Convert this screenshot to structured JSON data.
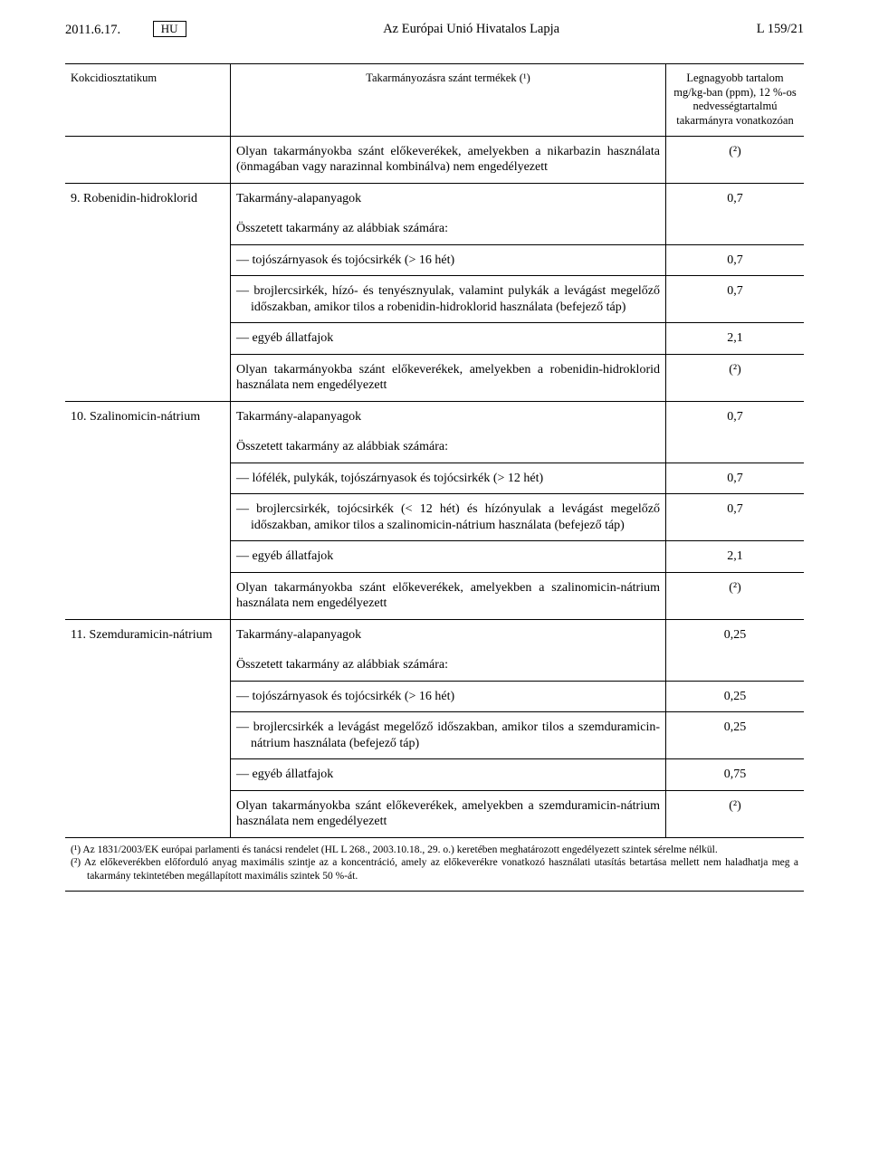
{
  "header": {
    "date": "2011.6.17.",
    "lang_box": "HU",
    "title": "Az Európai Unió Hivatalos Lapja",
    "page_ref": "L 159/21"
  },
  "table_header": {
    "col1": "Kokcidiosztatikum",
    "col2": "Takarmányozásra szánt termékek (¹)",
    "col3": "Legnagyobb tartalom mg/kg-ban (ppm), 12 %-os nedvességtartalmú takarmányra vonatkozóan"
  },
  "rows": {
    "r1": {
      "text": "Olyan takarmányokba szánt előkeverékek, amelyekben a nikarbazin használata (önmagában vagy narazinnal kombinálva) nem engedélyezett",
      "val": "(²)"
    },
    "s9_label": "9. Robenidin-hidroklorid",
    "s9_a": {
      "text": "Takarmány-alapanyagok",
      "val": "0,7"
    },
    "s9_b": {
      "text": "Összetett takarmány az alábbiak számára:"
    },
    "s9_c": {
      "text": "— tojószárnyasok és tojócsirkék (> 16 hét)",
      "val": "0,7"
    },
    "s9_d": {
      "text": "— brojlercsirkék, hízó- és tenyésznyulak, valamint pulykák a levágást megelőző időszakban, amikor tilos a robenidin-hidroklorid használata (befejező táp)",
      "val": "0,7"
    },
    "s9_e": {
      "text": "— egyéb állatfajok",
      "val": "2,1"
    },
    "s9_f": {
      "text": "Olyan takarmányokba szánt előkeverékek, amelyekben a robenidin-hidroklorid használata nem engedélyezett",
      "val": "(²)"
    },
    "s10_label": "10. Szalinomicin-nátrium",
    "s10_a": {
      "text": "Takarmány-alapanyagok",
      "val": "0,7"
    },
    "s10_b": {
      "text": "Összetett takarmány az alábbiak számára:"
    },
    "s10_c": {
      "text": "— lófélék, pulykák, tojószárnyasok és tojócsirkék (> 12 hét)",
      "val": "0,7"
    },
    "s10_d": {
      "text": "— brojlercsirkék, tojócsirkék (< 12 hét) és hízónyulak a levágást megelőző időszakban, amikor tilos a szalinomicin-nátrium használata (befejező táp)",
      "val": "0,7"
    },
    "s10_e": {
      "text": "— egyéb állatfajok",
      "val": "2,1"
    },
    "s10_f": {
      "text": "Olyan takarmányokba szánt előkeverékek, amelyekben a szalinomicin-nátrium használata nem engedélyezett",
      "val": "(²)"
    },
    "s11_label": "11. Szemduramicin-nátrium",
    "s11_a": {
      "text": "Takarmány-alapanyagok",
      "val": "0,25"
    },
    "s11_b": {
      "text": "Összetett takarmány az alábbiak számára:"
    },
    "s11_c": {
      "text": "— tojószárnyasok és tojócsirkék (> 16 hét)",
      "val": "0,25"
    },
    "s11_d": {
      "text": "— brojlercsirkék a levágást megelőző időszakban, amikor tilos a szemduramicin-nátrium használata (befejező táp)",
      "val": "0,25"
    },
    "s11_e": {
      "text": "— egyéb állatfajok",
      "val": "0,75"
    },
    "s11_f": {
      "text": "Olyan takarmányokba szánt előkeverékek, amelyekben a szemduramicin-nátrium használata nem engedélyezett",
      "val": "(²)"
    }
  },
  "footnotes": {
    "f1": "(¹) Az 1831/2003/EK európai parlamenti és tanácsi rendelet (HL L 268., 2003.10.18., 29. o.) keretében meghatározott engedélyezett szintek sérelme nélkül.",
    "f2": "(²) Az előkeverékben előforduló anyag maximális szintje az a koncentráció, amely az előkeverékre vonatkozó használati utasítás betartása mellett nem haladhatja meg a takarmány tekintetében megállapított maximális szintek 50 %-át."
  }
}
